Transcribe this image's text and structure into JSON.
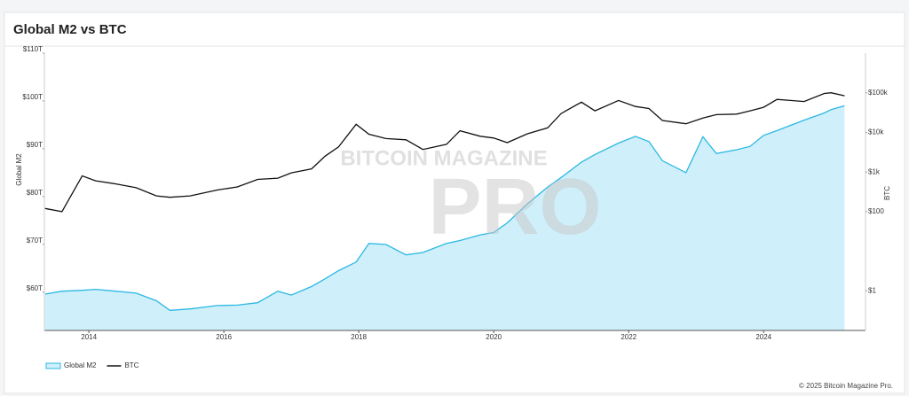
{
  "header": {
    "title": "Global M2 vs BTC"
  },
  "chart_data": {
    "type": "line",
    "x": [
      2013.35,
      2013.6,
      2013.9,
      2014.1,
      2014.4,
      2014.7,
      2015.0,
      2015.2,
      2015.5,
      2015.9,
      2016.2,
      2016.5,
      2016.8,
      2017.0,
      2017.3,
      2017.5,
      2017.7,
      2017.96,
      2018.15,
      2018.4,
      2018.7,
      2018.95,
      2019.3,
      2019.5,
      2019.8,
      2020.0,
      2020.2,
      2020.5,
      2020.8,
      2021.0,
      2021.3,
      2021.5,
      2021.85,
      2022.1,
      2022.3,
      2022.5,
      2022.85,
      2023.1,
      2023.3,
      2023.6,
      2023.8,
      2024.0,
      2024.2,
      2024.6,
      2024.9,
      2025.0,
      2025.2
    ],
    "series": [
      {
        "name": "Global M2",
        "color": "#2bb8e2",
        "fill": "#cfeffa",
        "values": [
          59.6,
          60.2,
          60.4,
          60.6,
          60.2,
          59.8,
          58.2,
          56.2,
          56.5,
          57.2,
          57.3,
          57.8,
          60.2,
          59.4,
          61.2,
          62.8,
          64.5,
          66.3,
          70.2,
          70.0,
          67.8,
          68.3,
          70.2,
          70.8,
          72.0,
          72.5,
          74.5,
          78.5,
          82.0,
          84.0,
          87.2,
          88.8,
          91.2,
          92.6,
          91.5,
          87.5,
          85.0,
          92.5,
          89.0,
          89.8,
          90.5,
          92.8,
          93.8,
          96.0,
          97.5,
          98.2,
          99.0
        ]
      },
      {
        "name": "BTC",
        "color": "#111111",
        "axis": "y2",
        "values": [
          120,
          100,
          800,
          600,
          500,
          400,
          250,
          230,
          250,
          350,
          420,
          650,
          700,
          950,
          1200,
          2500,
          4300,
          16000,
          9000,
          7000,
          6500,
          3700,
          5000,
          11000,
          8000,
          7200,
          5500,
          9200,
          13000,
          30000,
          58000,
          35000,
          64000,
          45000,
          40000,
          20000,
          16500,
          23000,
          28000,
          29000,
          35000,
          43000,
          68000,
          60000,
          96000,
          100000,
          84000
        ]
      }
    ],
    "xlim": [
      2013.34,
      2025.51
    ],
    "xticks": [
      2014,
      2016,
      2018,
      2020,
      2022,
      2024
    ],
    "ylim": [
      52,
      110
    ],
    "yticks": [
      {
        "value": 60,
        "label": "$60T"
      },
      {
        "value": 70,
        "label": "$70T"
      },
      {
        "value": 80,
        "label": "$80T"
      },
      {
        "value": 90,
        "label": "$90T"
      },
      {
        "value": 100,
        "label": "$100T"
      },
      {
        "value": 110,
        "label": "$110T"
      }
    ],
    "y2lim": [
      0.1,
      1000000
    ],
    "y2log": true,
    "y2ticks": [
      {
        "value": 1,
        "label": "$1"
      },
      {
        "value": 100,
        "label": "$100"
      },
      {
        "value": 1000,
        "label": "$1k"
      },
      {
        "value": 10000,
        "label": "$10k"
      },
      {
        "value": 100000,
        "label": "$100k"
      }
    ],
    "ylabel": "Global M2",
    "y2label": "BTC",
    "legend": "bottom-left"
  },
  "watermark": {
    "top": "BITCOIN MAGAZINE",
    "main": "PRO"
  },
  "footer": "© 2025 Bitcoin Magazine Pro."
}
